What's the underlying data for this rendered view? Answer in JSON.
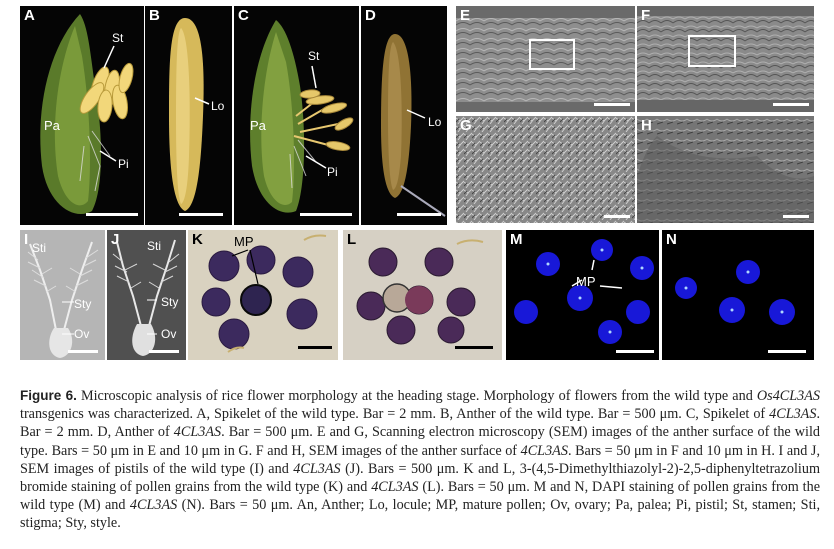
{
  "panels": {
    "A": {
      "label": "A",
      "st": "St",
      "pa": "Pa",
      "pi": "Pi"
    },
    "B": {
      "label": "B",
      "lo": "Lo"
    },
    "C": {
      "label": "C",
      "st": "St",
      "pa": "Pa",
      "pi": "Pi"
    },
    "D": {
      "label": "D",
      "lo": "Lo"
    },
    "E": {
      "label": "E"
    },
    "F": {
      "label": "F"
    },
    "G": {
      "label": "G"
    },
    "H": {
      "label": "H"
    },
    "I": {
      "label": "I",
      "sti": "Sti",
      "sty": "Sty",
      "ov": "Ov"
    },
    "J": {
      "label": "J",
      "sti": "Sti",
      "sty": "Sty",
      "ov": "Ov"
    },
    "K": {
      "label": "K",
      "mp": "MP"
    },
    "L": {
      "label": "L"
    },
    "M": {
      "label": "M",
      "mp": "MP"
    },
    "N": {
      "label": "N"
    }
  },
  "caption": {
    "figure_label": "Figure 6.",
    "parts": [
      {
        "t": " Microscopic analysis of rice flower morphology at the heading stage. Morphology of flowers from the wild type and ",
        "i": false
      },
      {
        "t": "Os4CL3AS",
        "i": true
      },
      {
        "t": " transgenics was characterized. A, Spikelet of the wild type. Bar = 2 mm. B, Anther of the wild type. Bar = 500 μm. C, Spikelet of ",
        "i": false
      },
      {
        "t": "4CL3AS",
        "i": true
      },
      {
        "t": ". Bar = 2 mm. D, Anther of ",
        "i": false
      },
      {
        "t": "4CL3AS",
        "i": true
      },
      {
        "t": ". Bar = 500 μm. E and G, Scanning electron microscopy (SEM) images of the anther surface of the wild type. Bars = 50 μm in E and 10 μm in G. F and H, SEM images of the anther surface of ",
        "i": false
      },
      {
        "t": "4CL3AS",
        "i": true
      },
      {
        "t": ". Bars = 50 μm in F and 10 μm in H. I and J, SEM images of pistils of the wild type (I) and ",
        "i": false
      },
      {
        "t": "4CL3AS",
        "i": true
      },
      {
        "t": " (J). Bars = 500 μm. K and L, 3-(4,5-Dimethylthiazolyl-2)-2,5-diphenyltetrazolium bromide staining of pollen grains from the wild type (K) and ",
        "i": false
      },
      {
        "t": "4CL3AS",
        "i": true
      },
      {
        "t": " (L). Bars = 50 μm. M and N, DAPI staining of pollen grains from the wild type (M) and ",
        "i": false
      },
      {
        "t": "4CL3AS",
        "i": true
      },
      {
        "t": " (N). Bars = 50 μm. An, Anther; Lo, locule; MP, mature pollen; Ov, ovary; Pa, palea; Pi, pistil; St, stamen; Sti, stigma; Sty, style.",
        "i": false
      }
    ]
  }
}
